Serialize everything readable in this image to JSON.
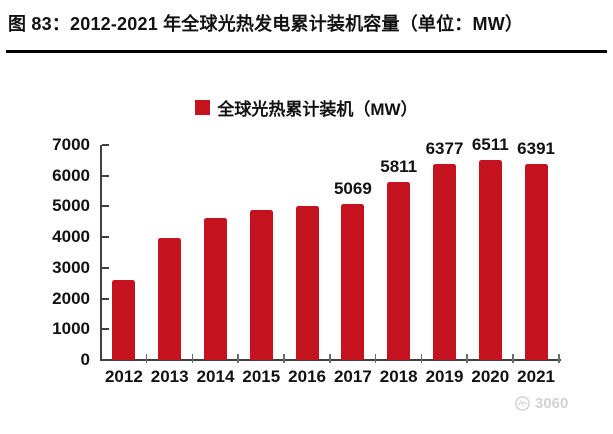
{
  "header": {
    "title": "图 83：2012-2021 年全球光热发电累计装机容量（单位：MW）"
  },
  "legend": {
    "label": "全球光热累计装机（MW）",
    "marker_color": "#C4121E"
  },
  "chart_data": {
    "type": "bar",
    "title": "2012-2021 年全球光热发电累计装机容量",
    "unit": "MW",
    "categories": [
      "2012",
      "2013",
      "2014",
      "2015",
      "2016",
      "2017",
      "2018",
      "2019",
      "2020",
      "2021"
    ],
    "values": [
      2600,
      3960,
      4620,
      4870,
      5000,
      5069,
      5811,
      6377,
      6511,
      6391
    ],
    "data_labels": [
      "",
      "",
      "",
      "",
      "",
      "5069",
      "5811",
      "6377",
      "6511",
      "6391"
    ],
    "ylim": [
      0,
      7000
    ],
    "yticks": [
      0,
      1000,
      2000,
      3000,
      4000,
      5000,
      6000,
      7000
    ],
    "xlabel": "",
    "ylabel": "",
    "grid": false,
    "legend_position": "top-center",
    "bar_color": "#C4121E",
    "axis_color": "#404040",
    "text_color": "#121212"
  },
  "watermark": {
    "text": "3060",
    "icon": "globe-logo-icon",
    "color": "#d2d2d2"
  }
}
